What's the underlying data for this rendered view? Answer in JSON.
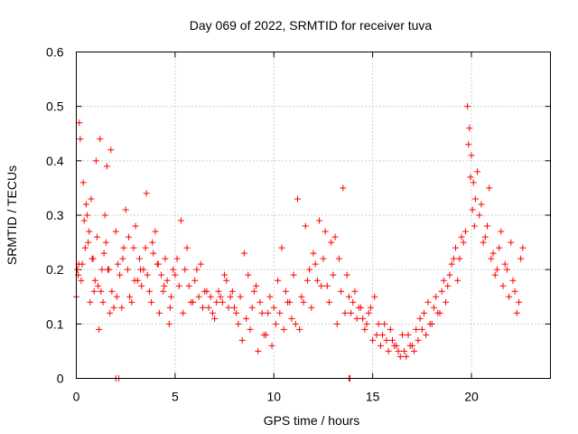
{
  "chart_data": {
    "type": "scatter",
    "title": "Day 069 of 2022, SRMTID for receiver tuva",
    "xlabel": "GPS time / hours",
    "ylabel": "SRMTID / TECUs",
    "xlim": [
      0,
      24
    ],
    "ylim": [
      0,
      0.6
    ],
    "xticks": [
      0,
      5,
      10,
      15,
      20
    ],
    "xtick_labels": [
      "0",
      "5",
      "10",
      "15",
      "20"
    ],
    "yticks": [
      0,
      0.1,
      0.2,
      0.3,
      0.4,
      0.5,
      0.6
    ],
    "ytick_labels": [
      "0",
      "0.1",
      "0.2",
      "0.3",
      "0.4",
      "0.5",
      "0.6"
    ],
    "grid": true,
    "marker": "+",
    "marker_color": "#ff0000",
    "series": [
      {
        "name": "SRMTID",
        "x": [
          0.0,
          0.1,
          0.15,
          0.2,
          0.3,
          0.35,
          0.4,
          0.5,
          0.6,
          0.7,
          0.8,
          0.9,
          1.0,
          1.1,
          1.2,
          1.3,
          1.4,
          1.5,
          1.6,
          1.7,
          1.8,
          1.9,
          2.0,
          2.1,
          2.2,
          2.3,
          2.4,
          2.5,
          2.6,
          2.7,
          2.8,
          2.9,
          3.0,
          3.1,
          3.2,
          3.3,
          3.4,
          3.5,
          3.6,
          3.7,
          3.8,
          3.9,
          4.0,
          4.1,
          4.2,
          4.3,
          4.4,
          4.5,
          4.6,
          4.7,
          4.8,
          4.9,
          5.0,
          5.2,
          5.4,
          5.6,
          5.8,
          6.0,
          6.2,
          6.4,
          6.6,
          6.8,
          7.0,
          7.2,
          7.4,
          7.6,
          7.8,
          8.0,
          8.2,
          8.4,
          8.6,
          8.8,
          9.0,
          9.2,
          9.4,
          9.6,
          9.8,
          10.0,
          10.2,
          10.4,
          10.6,
          10.8,
          11.0,
          11.2,
          11.4,
          11.6,
          11.8,
          12.0,
          12.2,
          12.4,
          12.6,
          12.8,
          13.0,
          13.2,
          13.4,
          13.6,
          13.8,
          14.0,
          14.2,
          14.4,
          14.6,
          14.8,
          15.0,
          15.2,
          15.4,
          15.6,
          15.8,
          16.0,
          16.2,
          16.4,
          16.6,
          16.8,
          17.0,
          17.2,
          17.4,
          17.6,
          17.8,
          18.0,
          18.2,
          18.4,
          18.6,
          18.8,
          19.0,
          19.2,
          19.4,
          19.6,
          19.8,
          19.9,
          20.0,
          20.1,
          20.2,
          20.4,
          20.6,
          20.8,
          21.0,
          21.2,
          21.4,
          21.6,
          21.8,
          22.0,
          22.2,
          22.4,
          22.6,
          0.05,
          0.12,
          0.25,
          0.45,
          0.55,
          0.65,
          0.75,
          0.85,
          0.95,
          1.05,
          1.15,
          1.25,
          1.35,
          1.45,
          1.55,
          1.65,
          1.75,
          2.05,
          2.35,
          2.65,
          2.95,
          3.25,
          3.55,
          3.85,
          4.15,
          4.45,
          4.75,
          5.1,
          5.3,
          5.5,
          5.7,
          5.9,
          6.1,
          6.3,
          6.5,
          6.7,
          6.9,
          7.1,
          7.3,
          7.5,
          7.7,
          7.9,
          8.1,
          8.3,
          8.5,
          8.7,
          8.9,
          9.1,
          9.3,
          9.5,
          9.7,
          9.9,
          10.1,
          10.3,
          10.5,
          10.7,
          10.9,
          11.1,
          11.3,
          11.5,
          11.7,
          11.9,
          12.1,
          12.3,
          12.5,
          12.7,
          12.9,
          13.1,
          13.3,
          13.5,
          13.7,
          13.9,
          14.1,
          14.3,
          14.5,
          14.7,
          14.9,
          15.1,
          15.3,
          15.5,
          15.7,
          15.9,
          16.1,
          16.3,
          16.5,
          16.7,
          16.9,
          17.1,
          17.3,
          17.5,
          17.7,
          17.9,
          18.1,
          18.3,
          18.5,
          18.7,
          18.9,
          19.1,
          19.3,
          19.5,
          19.7,
          19.85,
          19.95,
          20.05,
          20.15,
          20.3,
          20.5,
          20.7,
          20.9,
          21.1,
          21.3,
          21.5,
          21.7,
          21.9,
          22.1,
          22.3,
          22.5,
          2.0,
          2.15,
          13.8,
          13.85
        ],
        "y": [
          0.15,
          0.19,
          0.47,
          0.44,
          0.21,
          0.36,
          0.29,
          0.32,
          0.25,
          0.14,
          0.22,
          0.16,
          0.4,
          0.17,
          0.44,
          0.2,
          0.23,
          0.25,
          0.2,
          0.12,
          0.16,
          0.13,
          0.27,
          0.21,
          0.19,
          0.13,
          0.24,
          0.31,
          0.2,
          0.15,
          0.14,
          0.24,
          0.28,
          0.18,
          0.22,
          0.17,
          0.2,
          0.24,
          0.19,
          0.16,
          0.14,
          0.23,
          0.27,
          0.21,
          0.12,
          0.19,
          0.16,
          0.22,
          0.18,
          0.1,
          0.15,
          0.2,
          0.19,
          0.17,
          0.12,
          0.24,
          0.14,
          0.18,
          0.15,
          0.13,
          0.16,
          0.15,
          0.11,
          0.16,
          0.14,
          0.18,
          0.15,
          0.13,
          0.1,
          0.07,
          0.11,
          0.09,
          0.16,
          0.05,
          0.12,
          0.08,
          0.15,
          0.13,
          0.18,
          0.24,
          0.16,
          0.14,
          0.19,
          0.33,
          0.15,
          0.28,
          0.2,
          0.23,
          0.18,
          0.17,
          0.27,
          0.14,
          0.19,
          0.1,
          0.16,
          0.12,
          0.15,
          0.14,
          0.11,
          0.13,
          0.09,
          0.12,
          0.07,
          0.08,
          0.06,
          0.1,
          0.05,
          0.07,
          0.06,
          0.04,
          0.05,
          0.08,
          0.06,
          0.09,
          0.11,
          0.12,
          0.14,
          0.1,
          0.15,
          0.12,
          0.18,
          0.17,
          0.21,
          0.24,
          0.22,
          0.25,
          0.5,
          0.46,
          0.41,
          0.36,
          0.33,
          0.3,
          0.25,
          0.28,
          0.22,
          0.19,
          0.24,
          0.17,
          0.2,
          0.25,
          0.16,
          0.14,
          0.24,
          0.2,
          0.21,
          0.18,
          0.24,
          0.3,
          0.27,
          0.33,
          0.22,
          0.18,
          0.26,
          0.09,
          0.16,
          0.14,
          0.3,
          0.39,
          0.2,
          0.42,
          0.15,
          0.22,
          0.26,
          0.18,
          0.2,
          0.34,
          0.25,
          0.21,
          0.17,
          0.13,
          0.22,
          0.29,
          0.2,
          0.17,
          0.14,
          0.2,
          0.21,
          0.16,
          0.13,
          0.12,
          0.14,
          0.15,
          0.19,
          0.13,
          0.16,
          0.12,
          0.15,
          0.23,
          0.19,
          0.13,
          0.17,
          0.14,
          0.08,
          0.12,
          0.06,
          0.1,
          0.12,
          0.09,
          0.14,
          0.11,
          0.1,
          0.09,
          0.14,
          0.18,
          0.13,
          0.21,
          0.29,
          0.22,
          0.17,
          0.25,
          0.26,
          0.22,
          0.35,
          0.19,
          0.12,
          0.16,
          0.13,
          0.11,
          0.1,
          0.13,
          0.15,
          0.1,
          0.08,
          0.07,
          0.09,
          0.06,
          0.05,
          0.08,
          0.04,
          0.06,
          0.05,
          0.07,
          0.09,
          0.08,
          0.1,
          0.13,
          0.12,
          0.16,
          0.14,
          0.19,
          0.22,
          0.18,
          0.26,
          0.27,
          0.43,
          0.37,
          0.31,
          0.28,
          0.38,
          0.32,
          0.26,
          0.35,
          0.23,
          0.2,
          0.27,
          0.21,
          0.15,
          0.18,
          0.12,
          0.22,
          0.0,
          0.0,
          0.0,
          0.0
        ]
      }
    ]
  }
}
